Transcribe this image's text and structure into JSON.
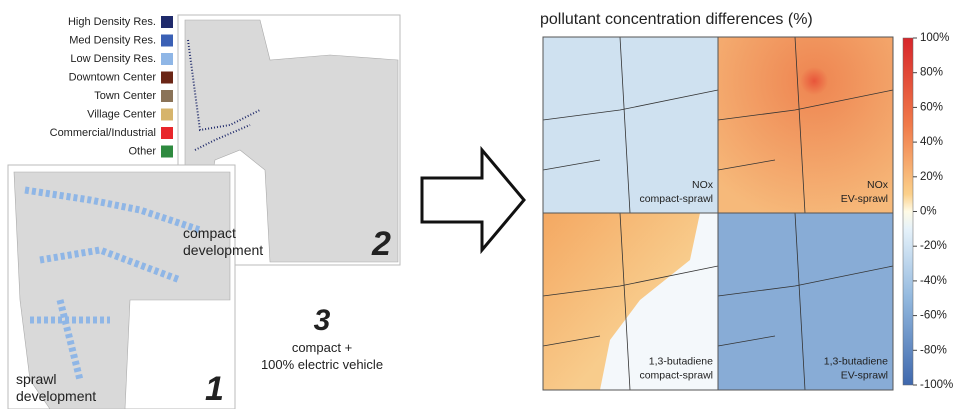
{
  "legend": {
    "items": [
      {
        "label": "High Density Res.",
        "color": "#1f2a6b"
      },
      {
        "label": "Med Density Res.",
        "color": "#3a60b5"
      },
      {
        "label": "Low Density Res.",
        "color": "#8fb6e6"
      },
      {
        "label": "Downtown Center",
        "color": "#6b2616"
      },
      {
        "label": "Town Center",
        "color": "#8a7358"
      },
      {
        "label": "Village Center",
        "color": "#d6b46c"
      },
      {
        "label": "Commercial/Industrial",
        "color": "#e8262b"
      },
      {
        "label": "Other",
        "color": "#2e8a3f"
      }
    ]
  },
  "maps": [
    {
      "number": "1",
      "label_lines": [
        "sprawl",
        "development"
      ]
    },
    {
      "number": "2",
      "label_lines": [
        "compact",
        "development"
      ]
    },
    {
      "number": "3",
      "label_lines": [
        "compact +",
        "100% electric vehicle"
      ]
    }
  ],
  "panels": {
    "title": "pollutant concentration differences (%)",
    "items": [
      {
        "pollutant": "NOx",
        "scenario": "compact-sprawl"
      },
      {
        "pollutant": "NOx",
        "scenario": "EV-sprawl"
      },
      {
        "pollutant": "1,3-butadiene",
        "scenario": "compact-sprawl"
      },
      {
        "pollutant": "1,3-butadiene",
        "scenario": "EV-sprawl"
      }
    ]
  },
  "colorbar": {
    "ticks": [
      "100%",
      "80%",
      "60%",
      "40%",
      "20%",
      "0%",
      "-20%",
      "-40%",
      "-60%",
      "-80%",
      "-100%"
    ]
  }
}
